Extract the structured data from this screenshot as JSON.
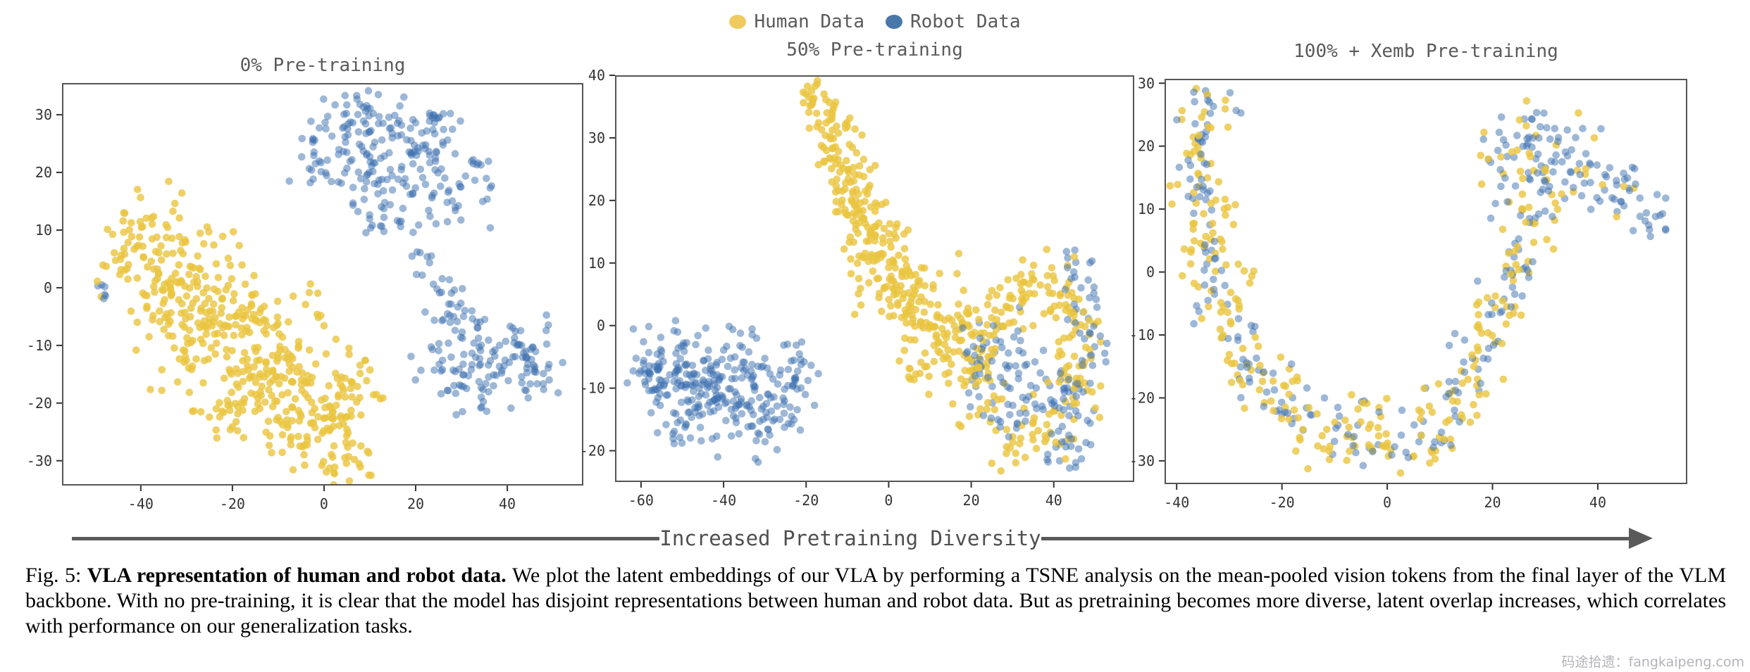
{
  "colors": {
    "human": "#eac43f",
    "robot": "#3c6fb0",
    "legend_human": "#efcb5e",
    "legend_robot": "#4878a8",
    "axis": "#555555",
    "tick_label": "#333333",
    "title_text": "#5a5a5a",
    "arrow": "#5a5a5a",
    "watermark": "#b5b3b8"
  },
  "legend": {
    "items": [
      {
        "label": "Human Data",
        "series": "human"
      },
      {
        "label": "Robot Data",
        "series": "robot"
      }
    ]
  },
  "chart_data": [
    {
      "type": "scatter",
      "title": "0% Pre-training",
      "xlabel": "",
      "ylabel": "",
      "xlim": [
        -57.2,
        56.6
      ],
      "ylim": [
        -34.3,
        35.5
      ],
      "xticks": [
        -40,
        -20,
        0,
        20,
        40
      ],
      "yticks": [
        30,
        20,
        10,
        0,
        -10,
        -20,
        -30
      ],
      "grid": false,
      "series_names": [
        "Human Data",
        "Robot Data"
      ],
      "clusters_format": "[x, y, sx, sy, n_human, n_robot]",
      "clusters": [
        [
          -40,
          10,
          5,
          3,
          30,
          0
        ],
        [
          -44,
          4,
          3,
          3,
          16,
          0
        ],
        [
          -33,
          5,
          6,
          4,
          45,
          0
        ],
        [
          -25,
          0,
          6,
          4.5,
          55,
          0
        ],
        [
          -17,
          -6,
          6.5,
          5,
          60,
          0
        ],
        [
          -28,
          -11,
          5,
          4,
          35,
          0
        ],
        [
          -36,
          -4,
          4,
          3.5,
          28,
          0
        ],
        [
          -10,
          -12,
          6,
          4.5,
          55,
          0
        ],
        [
          -14,
          -17,
          5,
          3.5,
          40,
          0
        ],
        [
          -4,
          -18,
          5,
          4,
          45,
          0
        ],
        [
          -21,
          -22,
          4,
          3,
          28,
          0
        ],
        [
          2,
          -24,
          4,
          3.5,
          40,
          0
        ],
        [
          4,
          -30,
          3.5,
          2,
          22,
          0
        ],
        [
          8,
          -17,
          3,
          3,
          18,
          0
        ],
        [
          -7,
          -25,
          4,
          2.5,
          24,
          0
        ],
        [
          3,
          25,
          4,
          3.5,
          0,
          35
        ],
        [
          12,
          27,
          4.5,
          3.5,
          0,
          40
        ],
        [
          21,
          24,
          4.5,
          3.5,
          0,
          40
        ],
        [
          28,
          17,
          4,
          3.5,
          0,
          32
        ],
        [
          17,
          17,
          4,
          3,
          0,
          26
        ],
        [
          8,
          19,
          3.5,
          2.5,
          0,
          20
        ],
        [
          25,
          29,
          3,
          2,
          0,
          13
        ],
        [
          -2,
          21,
          2.5,
          2.5,
          0,
          14
        ],
        [
          5,
          31,
          3,
          1.5,
          0,
          10
        ],
        [
          13,
          11,
          3,
          2,
          0,
          12
        ],
        [
          22,
          6,
          2.5,
          3,
          0,
          13
        ],
        [
          26,
          -1,
          2.5,
          2.5,
          0,
          14
        ],
        [
          30,
          -8,
          3.5,
          3,
          0,
          26
        ],
        [
          37,
          -12,
          4.5,
          3.5,
          0,
          40
        ],
        [
          45,
          -11,
          3.5,
          3,
          0,
          30
        ],
        [
          33,
          -17,
          4,
          2.5,
          0,
          22
        ],
        [
          47,
          -16,
          2.5,
          2,
          0,
          14
        ],
        [
          25,
          -15,
          3,
          2,
          0,
          13
        ],
        [
          -48,
          -1,
          0.8,
          1.8,
          0,
          6
        ]
      ]
    },
    {
      "type": "scatter",
      "title": "50% Pre-training",
      "xlabel": "",
      "ylabel": "",
      "xlim": [
        -66.3,
        59.5
      ],
      "ylim": [
        -25,
        40
      ],
      "xticks": [
        -60,
        -40,
        -20,
        0,
        20,
        40
      ],
      "yticks": [
        40,
        30,
        20,
        10,
        0,
        -10,
        -20
      ],
      "grid": false,
      "series_names": [
        "Human Data",
        "Robot Data"
      ],
      "clusters_format": "[x, y, sx, sy, n_human, n_robot]",
      "clusters": [
        [
          -55,
          -8,
          4,
          3,
          0,
          48
        ],
        [
          -48,
          -10,
          4,
          3.5,
          0,
          48
        ],
        [
          -41,
          -8,
          4,
          3,
          0,
          40
        ],
        [
          -34,
          -9,
          4,
          3.5,
          0,
          40
        ],
        [
          -27,
          -12,
          3.5,
          3,
          0,
          32
        ],
        [
          -21,
          -8,
          3,
          3,
          0,
          26
        ],
        [
          -51,
          -16,
          3,
          2,
          0,
          18
        ],
        [
          -43,
          -15,
          3,
          2,
          0,
          18
        ],
        [
          -30,
          -16,
          3,
          2,
          0,
          15
        ],
        [
          -58,
          -5,
          2.5,
          2,
          0,
          13
        ],
        [
          -50,
          -3,
          3,
          1.5,
          0,
          11
        ],
        [
          -36,
          -14,
          3,
          2,
          0,
          14
        ],
        [
          24,
          -9,
          4,
          3.5,
          0,
          26
        ],
        [
          31,
          -4,
          3,
          4,
          0,
          22
        ],
        [
          38,
          -9,
          3,
          3,
          0,
          20
        ],
        [
          44,
          -13,
          3,
          4,
          0,
          26
        ],
        [
          49,
          -2,
          2.5,
          5,
          0,
          26
        ],
        [
          46,
          8,
          2.5,
          3,
          0,
          16
        ],
        [
          41,
          -19,
          4,
          2,
          0,
          14
        ],
        [
          30,
          -14,
          3,
          2,
          0,
          12
        ],
        [
          20,
          -3,
          2.5,
          2.5,
          0,
          11
        ],
        [
          -16,
          34,
          2.5,
          2.5,
          26,
          0
        ],
        [
          -13,
          29,
          3,
          2.5,
          30,
          0
        ],
        [
          -10,
          24,
          3.5,
          2.5,
          34,
          0
        ],
        [
          -7,
          19,
          4,
          2.5,
          36,
          0
        ],
        [
          -4,
          14,
          4,
          2.5,
          36,
          0
        ],
        [
          -1,
          10,
          4.5,
          3,
          40,
          0
        ],
        [
          4,
          6,
          4.5,
          3,
          40,
          0
        ],
        [
          9,
          2,
          5,
          3,
          44,
          0
        ],
        [
          14,
          -2,
          5,
          3,
          40,
          0
        ],
        [
          20,
          -6,
          4,
          3,
          30,
          0
        ],
        [
          25,
          -1,
          3.5,
          3,
          26,
          0
        ],
        [
          30,
          4,
          3.5,
          3,
          24,
          0
        ],
        [
          36,
          7,
          3,
          2.5,
          20,
          0
        ],
        [
          42,
          3,
          2.5,
          4,
          24,
          0
        ],
        [
          47,
          -3,
          2.5,
          5,
          28,
          0
        ],
        [
          44,
          -10,
          3,
          3,
          21,
          0
        ],
        [
          38,
          -16,
          4,
          2.5,
          19,
          0
        ],
        [
          31,
          -20,
          4,
          2,
          16,
          0
        ],
        [
          24,
          -13,
          3,
          2.5,
          14,
          0
        ],
        [
          7,
          -8,
          3,
          2.5,
          12,
          0
        ],
        [
          -18,
          38,
          1.5,
          1,
          6,
          0
        ]
      ]
    },
    {
      "type": "scatter",
      "title": "100% + Xemb Pre-training",
      "xlabel": "",
      "ylabel": "",
      "xlim": [
        -42.3,
        57
      ],
      "ylim": [
        -33.7,
        30.7
      ],
      "xticks": [
        -40,
        -20,
        0,
        20,
        40
      ],
      "yticks": [
        30,
        20,
        10,
        0,
        -10,
        -20,
        -30
      ],
      "grid": false,
      "series_names": [
        "Human Data",
        "Robot Data"
      ],
      "clusters_format": "[x, y, sx, sy, n_human, n_robot]",
      "clusters": [
        [
          -33,
          26,
          2.5,
          2,
          6,
          12
        ],
        [
          -36,
          21,
          2.5,
          2.5,
          12,
          12
        ],
        [
          -36,
          15,
          2.5,
          2.5,
          12,
          10
        ],
        [
          -35,
          9,
          2.5,
          3,
          14,
          10
        ],
        [
          -34,
          2,
          2.5,
          3,
          12,
          10
        ],
        [
          -32,
          -5,
          2.5,
          3,
          12,
          10
        ],
        [
          -29,
          -11,
          2.5,
          2.5,
          12,
          10
        ],
        [
          -25,
          -16,
          2.5,
          2.5,
          12,
          10
        ],
        [
          -20,
          -20,
          3,
          2.5,
          12,
          10
        ],
        [
          -14,
          -24,
          3,
          2.5,
          14,
          10
        ],
        [
          -7,
          -27,
          3,
          2,
          14,
          9
        ],
        [
          0,
          -29,
          3,
          2,
          12,
          8
        ],
        [
          7,
          -26,
          3,
          2.5,
          12,
          8
        ],
        [
          12,
          -21,
          2.5,
          2.5,
          12,
          10
        ],
        [
          16,
          -15,
          2.5,
          3,
          12,
          10
        ],
        [
          19,
          -9,
          2.5,
          3,
          12,
          10
        ],
        [
          22,
          -3,
          2.5,
          3,
          12,
          10
        ],
        [
          24,
          3,
          2.5,
          3,
          12,
          10
        ],
        [
          26,
          9,
          2.5,
          3,
          10,
          10
        ],
        [
          29,
          14,
          3,
          2.5,
          10,
          12
        ],
        [
          33,
          19,
          4,
          3,
          8,
          26
        ],
        [
          27,
          21,
          3,
          2.5,
          6,
          16
        ],
        [
          21,
          19,
          3,
          3,
          5,
          14
        ],
        [
          40,
          15,
          3,
          2.5,
          4,
          18
        ],
        [
          46,
          11,
          3,
          2.5,
          2,
          16
        ],
        [
          51,
          8,
          2,
          2,
          0,
          12
        ],
        [
          -30,
          8,
          2,
          2,
          8,
          0
        ],
        [
          -28,
          -2,
          2,
          2,
          6,
          0
        ],
        [
          -5,
          -21,
          3,
          1.5,
          8,
          3
        ],
        [
          10,
          -28,
          2,
          1.5,
          6,
          3
        ]
      ]
    }
  ],
  "arrow": {
    "label": "Increased Pretraining Diversity"
  },
  "caption": {
    "fig_label": "Fig. 5: ",
    "bold": "VLA representation of human and robot data. ",
    "body": "We plot the latent embeddings of our VLA by performing a TSNE analysis on the mean-pooled vision tokens from the final layer of the VLM backbone. With no pre-training, it is clear that the model has disjoint representations between human and robot data. But as pretraining becomes more diverse, latent overlap increases, which correlates with performance on our generalization tasks."
  },
  "watermark": {
    "text": "码途拾遗：fangkaipeng.com"
  }
}
